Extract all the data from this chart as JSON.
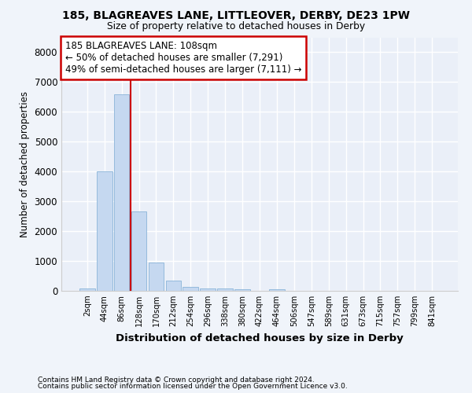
{
  "title1": "185, BLAGREAVES LANE, LITTLEOVER, DERBY, DE23 1PW",
  "title2": "Size of property relative to detached houses in Derby",
  "xlabel": "Distribution of detached houses by size in Derby",
  "ylabel": "Number of detached properties",
  "footer1": "Contains HM Land Registry data © Crown copyright and database right 2024.",
  "footer2": "Contains public sector information licensed under the Open Government Licence v3.0.",
  "bin_labels": [
    "2sqm",
    "44sqm",
    "86sqm",
    "128sqm",
    "170sqm",
    "212sqm",
    "254sqm",
    "296sqm",
    "338sqm",
    "380sqm",
    "422sqm",
    "464sqm",
    "506sqm",
    "547sqm",
    "589sqm",
    "631sqm",
    "673sqm",
    "715sqm",
    "757sqm",
    "799sqm",
    "841sqm"
  ],
  "bar_values": [
    70,
    4000,
    6600,
    2650,
    950,
    330,
    130,
    90,
    70,
    50,
    0,
    60,
    0,
    0,
    0,
    0,
    0,
    0,
    0,
    0,
    0
  ],
  "bar_color": "#c5d8f0",
  "bar_edge_color": "#8ab4d8",
  "property_line_color": "#cc0000",
  "annotation_text": "185 BLAGREAVES LANE: 108sqm\n← 50% of detached houses are smaller (7,291)\n49% of semi-detached houses are larger (7,111) →",
  "annotation_box_color": "#ffffff",
  "annotation_box_edge_color": "#cc0000",
  "ylim": [
    0,
    8500
  ],
  "yticks": [
    0,
    1000,
    2000,
    3000,
    4000,
    5000,
    6000,
    7000,
    8000
  ],
  "background_color": "#f0f4fa",
  "plot_bg_color": "#eaeff8"
}
